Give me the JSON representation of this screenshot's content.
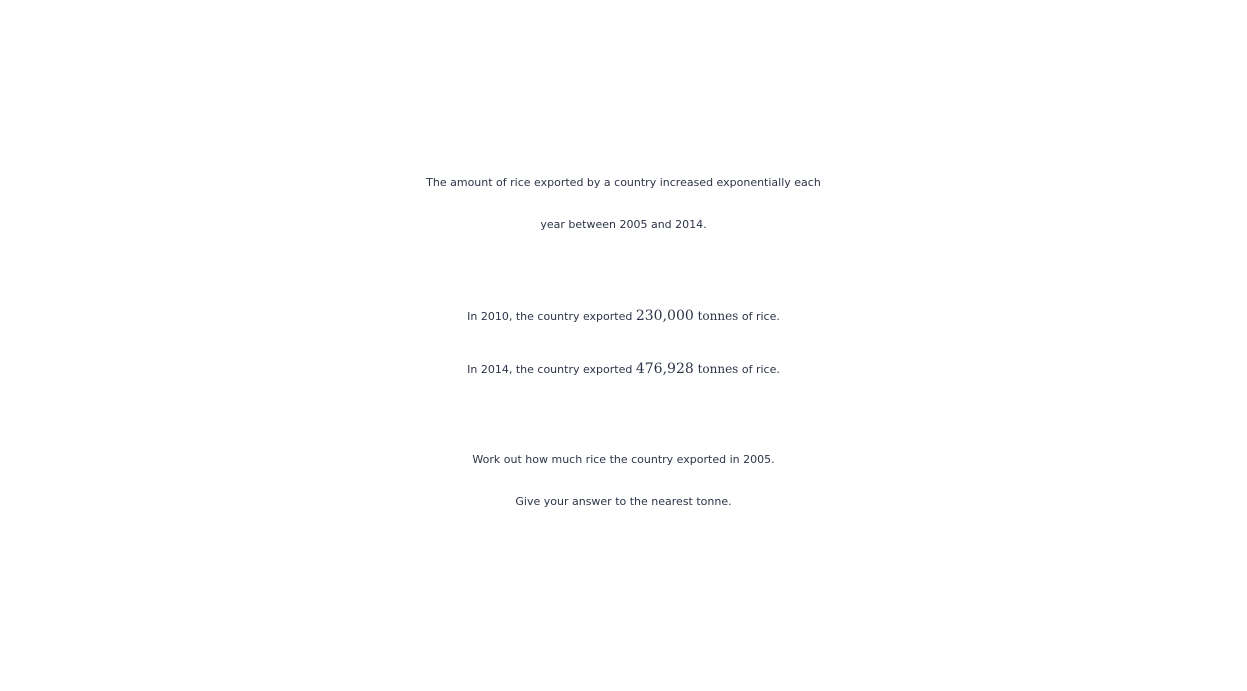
{
  "problem": {
    "intro_line1": "The amount of rice exported by a country increased exponentially each",
    "intro_line2": "year between 2005 and 2014.",
    "fact1": {
      "prefix": "In 2010, the country exported ",
      "value": "230,000",
      "unit": " tonnes",
      "suffix": " of rice."
    },
    "fact2": {
      "prefix": "In 2014, the country exported ",
      "value": "476,928",
      "unit": " tonnes",
      "suffix": " of rice."
    },
    "question_line1": "Work out how much rice the country exported in 2005.",
    "question_line2": "Give your answer to the nearest tonne."
  }
}
